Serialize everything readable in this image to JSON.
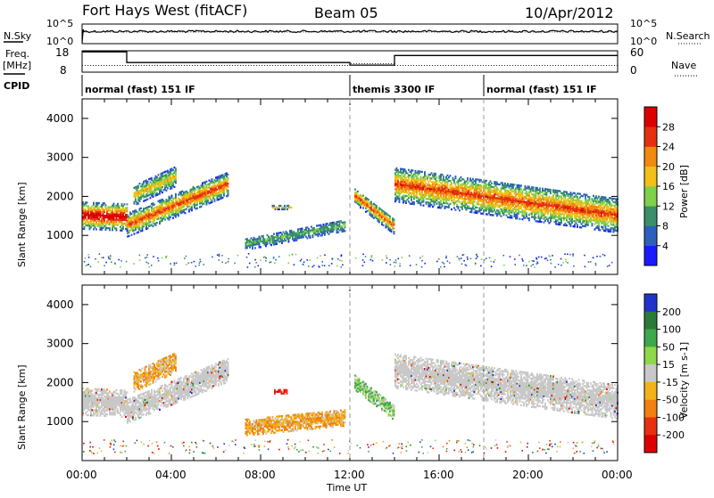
{
  "header": {
    "station": "Fort Hays West (fitACF)",
    "beam": "Beam 05",
    "date": "10/Apr/2012"
  },
  "nsky": {
    "label": "N.Sky",
    "top": "10^5",
    "bottom": "10^0",
    "right_label": "N.Search",
    "right_top": "10^5",
    "right_bottom": "10^0"
  },
  "freq": {
    "label": "Freq.",
    "unit": "[MHz]",
    "left_top": "18",
    "left_bottom": "8",
    "right_top": "60",
    "right_bottom": "0",
    "right_label": "Nave"
  },
  "cpid": {
    "label": "CPID",
    "segments": [
      {
        "start_h": 0,
        "end_h": 12,
        "text": "normal (fast) 151 IF"
      },
      {
        "start_h": 12,
        "end_h": 18,
        "text": "themis 3300 IF"
      },
      {
        "start_h": 18,
        "end_h": 24,
        "text": "normal (fast) 151 IF"
      }
    ]
  },
  "chart_data": [
    {
      "type": "heatmap",
      "name": "Power",
      "xlabel": "Time UT",
      "ylabel": "Slant Range [km]",
      "xlim": [
        0,
        24
      ],
      "ylim": [
        0,
        4500
      ],
      "yticks": [
        1000,
        2000,
        3000,
        4000
      ],
      "xticks": [
        "00:00",
        "04:00",
        "08:00",
        "12:00",
        "16:00",
        "20:00",
        "00:00"
      ],
      "colorbar": {
        "label": "Power [dB]",
        "ticks": [
          "4",
          "8",
          "12",
          "16",
          "20",
          "24",
          "28"
        ],
        "colors": [
          "#1a1aff",
          "#2d5fbf",
          "#3a8f6a",
          "#7fd04a",
          "#f2c01a",
          "#f08a10",
          "#e53010",
          "#dd0000"
        ]
      },
      "bands": [
        {
          "t": [
            0,
            2
          ],
          "center": [
            1500,
            1450
          ],
          "width": 700,
          "core": 3
        },
        {
          "t": [
            2,
            6.5
          ],
          "center": [
            1250,
            2300
          ],
          "width": 600,
          "core": 2
        },
        {
          "t": [
            2.3,
            4.2
          ],
          "center": [
            2000,
            2500
          ],
          "width": 500,
          "core": 1
        },
        {
          "t": [
            7.3,
            11.8
          ],
          "center": [
            760,
            1250
          ],
          "width": 300,
          "core": 0
        },
        {
          "t": [
            8.5,
            9.4
          ],
          "center": [
            1700,
            1700
          ],
          "width": 100,
          "core": 1
        },
        {
          "t": [
            12.2,
            14.0
          ],
          "center": [
            2000,
            1200
          ],
          "width": 400,
          "core": 2
        },
        {
          "t": [
            14.0,
            24.0
          ],
          "center": [
            2300,
            1500
          ],
          "width": 900,
          "core": 2
        }
      ]
    },
    {
      "type": "heatmap",
      "name": "Velocity",
      "xlabel": "Time UT",
      "ylabel": "Slant Range [km]",
      "xlim": [
        0,
        24
      ],
      "ylim": [
        0,
        4500
      ],
      "yticks": [
        1000,
        2000,
        3000,
        4000
      ],
      "xticks": [
        "00:00",
        "04:00",
        "08:00",
        "12:00",
        "16:00",
        "20:00",
        "00:00"
      ],
      "colorbar": {
        "label": "Velocity [m s-1]",
        "ticks": [
          "200",
          "100",
          "50",
          "15",
          "-15",
          "-50",
          "-100",
          "-200"
        ],
        "colors": [
          "#2233cc",
          "#2c7a3a",
          "#3fa84a",
          "#8ed84a",
          "#c8c8c8",
          "#f2b21a",
          "#f08010",
          "#e83010",
          "#dd0000"
        ]
      },
      "bands": [
        {
          "t": [
            0,
            2
          ],
          "center": [
            1500,
            1450
          ],
          "width": 700,
          "v": "ground"
        },
        {
          "t": [
            2,
            6.5
          ],
          "center": [
            1250,
            2300
          ],
          "width": 600,
          "v": "ground"
        },
        {
          "t": [
            2.3,
            4.2
          ],
          "center": [
            2000,
            2500
          ],
          "width": 500,
          "v": "neg"
        },
        {
          "t": [
            7.3,
            11.8
          ],
          "center": [
            850,
            1100
          ],
          "width": 450,
          "v": "neg"
        },
        {
          "t": [
            8.6,
            9.2
          ],
          "center": [
            1750,
            1750
          ],
          "width": 100,
          "v": "strongneg"
        },
        {
          "t": [
            12.2,
            14.0
          ],
          "center": [
            2000,
            1200
          ],
          "width": 400,
          "v": "pos"
        },
        {
          "t": [
            14.0,
            24.0
          ],
          "center": [
            2300,
            1500
          ],
          "width": 900,
          "v": "ground"
        }
      ]
    }
  ]
}
